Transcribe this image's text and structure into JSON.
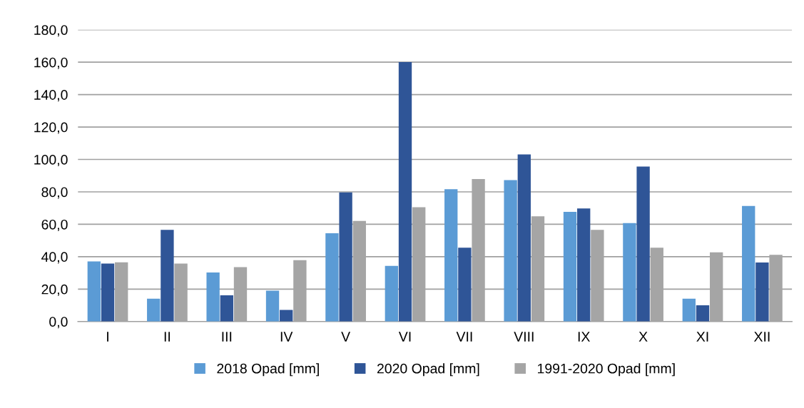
{
  "chart_data": {
    "type": "bar",
    "categories": [
      "I",
      "II",
      "III",
      "IV",
      "V",
      "VI",
      "VII",
      "VIII",
      "IX",
      "X",
      "XI",
      "XII"
    ],
    "series": [
      {
        "name": "2018 Opad [mm]",
        "color": "#5b9bd5",
        "values": [
          37.1,
          14.1,
          30.2,
          19.0,
          54.5,
          34.3,
          81.6,
          87.2,
          67.7,
          60.7,
          14.1,
          71.3
        ]
      },
      {
        "name": "2020 Opad [mm]",
        "color": "#2f5597",
        "values": [
          35.8,
          56.6,
          16.2,
          7.2,
          79.7,
          160.1,
          45.5,
          103.1,
          69.8,
          95.6,
          10.0,
          36.4
        ]
      },
      {
        "name": "1991-2020 Opad [mm]",
        "color": "#a5a5a5",
        "values": [
          36.5,
          35.8,
          33.6,
          37.8,
          62.1,
          70.5,
          87.9,
          64.9,
          56.6,
          45.5,
          42.7,
          41.2
        ]
      }
    ],
    "ylim": [
      0,
      180
    ],
    "yticks": [
      {
        "value": 0,
        "label": "0,0"
      },
      {
        "value": 20,
        "label": "20,0"
      },
      {
        "value": 40,
        "label": "40,0"
      },
      {
        "value": 60,
        "label": "60,0"
      },
      {
        "value": 80,
        "label": "80,0"
      },
      {
        "value": 100,
        "label": "100,0"
      },
      {
        "value": 120,
        "label": "120,0"
      },
      {
        "value": 140,
        "label": "140,0"
      },
      {
        "value": 160,
        "label": "160,0"
      },
      {
        "value": 180,
        "label": "180,0"
      }
    ],
    "grid": "y",
    "legend": "bottom"
  }
}
